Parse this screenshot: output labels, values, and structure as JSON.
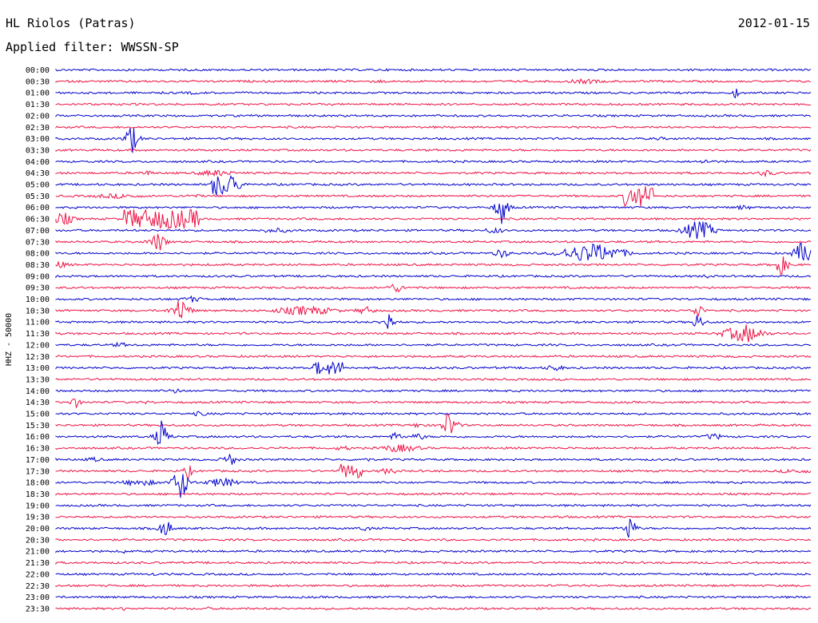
{
  "header": {
    "station": "HL Riolos (Patras)",
    "date": "2012-01-15",
    "filter": "Applied filter: WWSSN-SP"
  },
  "chart_data": {
    "type": "line",
    "title": "HL Riolos (Patras)",
    "ylabel": "HHZ - 50000",
    "colors": [
      "#0000cc",
      "#ee1144"
    ],
    "rows": [
      {
        "label": "00:00",
        "events": []
      },
      {
        "label": "00:30",
        "events": [
          {
            "x": 0.7,
            "amp": 3,
            "w": 0.02,
            "type": "burst"
          },
          {
            "x": 0.43,
            "amp": 2,
            "w": 0.01,
            "type": "burst"
          }
        ]
      },
      {
        "label": "01:00",
        "events": [
          {
            "x": 0.9,
            "amp": 8,
            "w": 0.005,
            "type": "spike"
          },
          {
            "x": 0.18,
            "amp": 2,
            "w": 0.01,
            "type": "burst"
          }
        ]
      },
      {
        "label": "01:30",
        "events": []
      },
      {
        "label": "02:00",
        "events": []
      },
      {
        "label": "02:30",
        "events": []
      },
      {
        "label": "03:00",
        "events": [
          {
            "x": 0.1,
            "amp": 25,
            "w": 0.006,
            "type": "spike"
          },
          {
            "x": 0.8,
            "amp": 2,
            "w": 0.01,
            "type": "burst"
          }
        ]
      },
      {
        "label": "03:30",
        "events": []
      },
      {
        "label": "04:00",
        "events": [
          {
            "x": 0.86,
            "amp": 3,
            "w": 0.01,
            "type": "burst"
          }
        ]
      },
      {
        "label": "04:30",
        "events": [
          {
            "x": 0.21,
            "amp": 4,
            "w": 0.02,
            "type": "burst"
          },
          {
            "x": 0.94,
            "amp": 4,
            "w": 0.01,
            "type": "burst"
          },
          {
            "x": 0.12,
            "amp": 3,
            "w": 0.01,
            "type": "burst"
          }
        ]
      },
      {
        "label": "05:00",
        "events": [
          {
            "x": 0.225,
            "amp": 14,
            "w": 0.02,
            "type": "block"
          }
        ]
      },
      {
        "label": "05:30",
        "events": [
          {
            "x": 0.77,
            "amp": 13,
            "w": 0.02,
            "type": "block"
          },
          {
            "x": 0.08,
            "amp": 3,
            "w": 0.03,
            "type": "burst"
          },
          {
            "x": 0.18,
            "amp": 2,
            "w": 0.02,
            "type": "burst"
          }
        ]
      },
      {
        "label": "06:00",
        "events": [
          {
            "x": 0.59,
            "amp": 26,
            "w": 0.006,
            "type": "spike"
          },
          {
            "x": 0.91,
            "amp": 3,
            "w": 0.01,
            "type": "burst"
          }
        ]
      },
      {
        "label": "06:30",
        "events": [
          {
            "x": 0.14,
            "amp": 12,
            "w": 0.05,
            "type": "block"
          },
          {
            "x": 0.01,
            "amp": 8,
            "w": 0.01,
            "type": "burst"
          }
        ]
      },
      {
        "label": "07:00",
        "events": [
          {
            "x": 0.85,
            "amp": 12,
            "w": 0.015,
            "type": "burst"
          },
          {
            "x": 0.58,
            "amp": 4,
            "w": 0.01,
            "type": "burst"
          },
          {
            "x": 0.29,
            "amp": 3,
            "w": 0.02,
            "type": "burst"
          }
        ]
      },
      {
        "label": "07:30",
        "events": [
          {
            "x": 0.135,
            "amp": 16,
            "w": 0.008,
            "type": "spike"
          }
        ]
      },
      {
        "label": "08:00",
        "events": [
          {
            "x": 0.71,
            "amp": 12,
            "w": 0.03,
            "type": "burst"
          },
          {
            "x": 0.99,
            "amp": 14,
            "w": 0.01,
            "type": "burst"
          },
          {
            "x": 0.59,
            "amp": 7,
            "w": 0.01,
            "type": "spike"
          }
        ]
      },
      {
        "label": "08:30",
        "events": [
          {
            "x": 0.96,
            "amp": 14,
            "w": 0.008,
            "type": "spike"
          },
          {
            "x": 0.005,
            "amp": 4,
            "w": 0.01,
            "type": "burst"
          }
        ]
      },
      {
        "label": "09:00",
        "events": [
          {
            "x": 0.86,
            "amp": 3,
            "w": 0.01,
            "type": "spike"
          }
        ]
      },
      {
        "label": "09:30",
        "events": [
          {
            "x": 0.45,
            "amp": 6,
            "w": 0.008,
            "type": "burst"
          }
        ]
      },
      {
        "label": "10:00",
        "events": [
          {
            "x": 0.18,
            "amp": 4,
            "w": 0.01,
            "type": "burst"
          }
        ]
      },
      {
        "label": "10:30",
        "events": [
          {
            "x": 0.165,
            "amp": 22,
            "w": 0.008,
            "type": "spike"
          },
          {
            "x": 0.33,
            "amp": 6,
            "w": 0.03,
            "type": "burst"
          },
          {
            "x": 0.41,
            "amp": 5,
            "w": 0.01,
            "type": "burst"
          },
          {
            "x": 0.85,
            "amp": 14,
            "w": 0.005,
            "type": "spike"
          }
        ]
      },
      {
        "label": "11:00",
        "events": [
          {
            "x": 0.44,
            "amp": 16,
            "w": 0.006,
            "type": "spike"
          },
          {
            "x": 0.85,
            "amp": 14,
            "w": 0.006,
            "type": "spike"
          }
        ]
      },
      {
        "label": "11:30",
        "events": [
          {
            "x": 0.91,
            "amp": 10,
            "w": 0.02,
            "type": "burst"
          },
          {
            "x": 0.915,
            "amp": 18,
            "w": 0.004,
            "type": "spike"
          }
        ]
      },
      {
        "label": "12:00",
        "events": [
          {
            "x": 0.085,
            "amp": 3,
            "w": 0.01,
            "type": "burst"
          }
        ]
      },
      {
        "label": "12:30",
        "events": []
      },
      {
        "label": "13:00",
        "events": [
          {
            "x": 0.36,
            "amp": 8,
            "w": 0.02,
            "type": "block"
          },
          {
            "x": 0.66,
            "amp": 4,
            "w": 0.01,
            "type": "burst"
          }
        ]
      },
      {
        "label": "13:30",
        "events": []
      },
      {
        "label": "14:00",
        "events": [
          {
            "x": 0.16,
            "amp": 3,
            "w": 0.01,
            "type": "burst"
          }
        ]
      },
      {
        "label": "14:30",
        "events": [
          {
            "x": 0.025,
            "amp": 9,
            "w": 0.006,
            "type": "spike"
          },
          {
            "x": 0.12,
            "amp": 2,
            "w": 0.01,
            "type": "burst"
          }
        ]
      },
      {
        "label": "15:00",
        "events": [
          {
            "x": 0.19,
            "amp": 3,
            "w": 0.01,
            "type": "burst"
          }
        ]
      },
      {
        "label": "15:30",
        "events": [
          {
            "x": 0.52,
            "amp": 22,
            "w": 0.007,
            "type": "spike"
          },
          {
            "x": 0.48,
            "amp": 3,
            "w": 0.01,
            "type": "burst"
          }
        ]
      },
      {
        "label": "16:00",
        "events": [
          {
            "x": 0.14,
            "amp": 24,
            "w": 0.006,
            "type": "spike"
          },
          {
            "x": 0.45,
            "amp": 5,
            "w": 0.008,
            "type": "burst"
          },
          {
            "x": 0.48,
            "amp": 4,
            "w": 0.008,
            "type": "burst"
          },
          {
            "x": 0.87,
            "amp": 4,
            "w": 0.01,
            "type": "burst"
          }
        ]
      },
      {
        "label": "16:30",
        "events": [
          {
            "x": 0.455,
            "amp": 5,
            "w": 0.02,
            "type": "burst"
          },
          {
            "x": 0.38,
            "amp": 3,
            "w": 0.01,
            "type": "burst"
          }
        ]
      },
      {
        "label": "17:00",
        "events": [
          {
            "x": 0.23,
            "amp": 10,
            "w": 0.008,
            "type": "spike"
          },
          {
            "x": 0.41,
            "amp": 6,
            "w": 0.004,
            "type": "spike"
          },
          {
            "x": 0.05,
            "amp": 3,
            "w": 0.01,
            "type": "burst"
          }
        ]
      },
      {
        "label": "17:30",
        "events": [
          {
            "x": 0.39,
            "amp": 9,
            "w": 0.015,
            "type": "block"
          },
          {
            "x": 0.175,
            "amp": 12,
            "w": 0.005,
            "type": "spike"
          },
          {
            "x": 0.44,
            "amp": 4,
            "w": 0.01,
            "type": "burst"
          },
          {
            "x": 0.98,
            "amp": 3,
            "w": 0.02,
            "type": "burst"
          }
        ]
      },
      {
        "label": "18:00",
        "events": [
          {
            "x": 0.165,
            "amp": 30,
            "w": 0.007,
            "type": "spike"
          },
          {
            "x": 0.22,
            "amp": 6,
            "w": 0.015,
            "type": "burst"
          },
          {
            "x": 0.11,
            "amp": 4,
            "w": 0.02,
            "type": "burst"
          }
        ]
      },
      {
        "label": "18:30",
        "events": []
      },
      {
        "label": "19:00",
        "events": []
      },
      {
        "label": "19:30",
        "events": [
          {
            "x": 0.09,
            "amp": 2,
            "w": 0.01,
            "type": "burst"
          },
          {
            "x": 0.67,
            "amp": 2,
            "w": 0.01,
            "type": "burst"
          }
        ]
      },
      {
        "label": "20:00",
        "events": [
          {
            "x": 0.145,
            "amp": 16,
            "w": 0.006,
            "type": "spike"
          },
          {
            "x": 0.76,
            "amp": 22,
            "w": 0.005,
            "type": "spike"
          },
          {
            "x": 0.41,
            "amp": 4,
            "w": 0.006,
            "type": "burst"
          }
        ]
      },
      {
        "label": "20:30",
        "events": []
      },
      {
        "label": "21:00",
        "events": [
          {
            "x": 0.09,
            "amp": 4,
            "w": 0.003,
            "type": "spike"
          }
        ]
      },
      {
        "label": "21:30",
        "events": []
      },
      {
        "label": "22:00",
        "events": [
          {
            "x": 0.13,
            "amp": 3,
            "w": 0.005,
            "type": "spike"
          }
        ]
      },
      {
        "label": "22:30",
        "events": []
      },
      {
        "label": "23:00",
        "events": []
      },
      {
        "label": "23:30",
        "events": [
          {
            "x": 0.09,
            "amp": 4,
            "w": 0.003,
            "type": "spike"
          },
          {
            "x": 0.2,
            "amp": 4,
            "w": 0.003,
            "type": "spike"
          }
        ]
      }
    ]
  }
}
